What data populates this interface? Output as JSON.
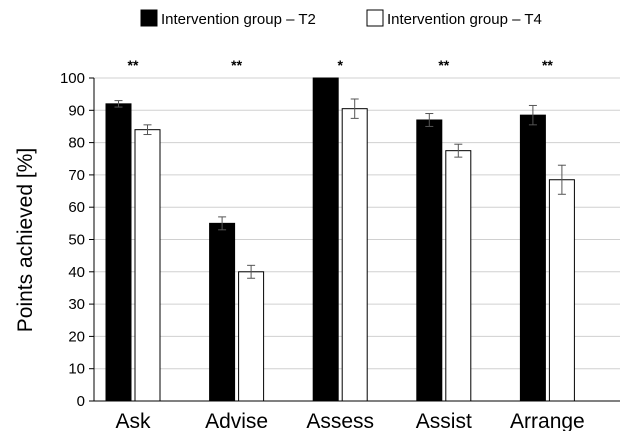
{
  "chart_data": {
    "type": "bar",
    "categories": [
      "Ask",
      "Advise",
      "Assess",
      "Assist",
      "Arrange"
    ],
    "series": [
      {
        "name": "Intervention group – T2",
        "values": [
          92,
          55,
          100,
          87,
          88.5
        ],
        "errors": [
          1,
          2,
          0,
          2,
          3
        ],
        "color": "#000000"
      },
      {
        "name": "Intervention group – T4",
        "values": [
          84,
          40,
          90.5,
          77.5,
          68.5
        ],
        "errors": [
          1.5,
          2,
          3,
          2,
          4.5
        ],
        "color": "#ffffff"
      }
    ],
    "significance": [
      "**",
      "**",
      "*",
      "**",
      "**"
    ],
    "xlabel": "",
    "ylabel": "Points achieved [%]",
    "ylim": [
      0,
      100
    ],
    "yticks": [
      0,
      10,
      20,
      30,
      40,
      50,
      60,
      70,
      80,
      90,
      100
    ],
    "grid": true,
    "legend_position": "top"
  }
}
